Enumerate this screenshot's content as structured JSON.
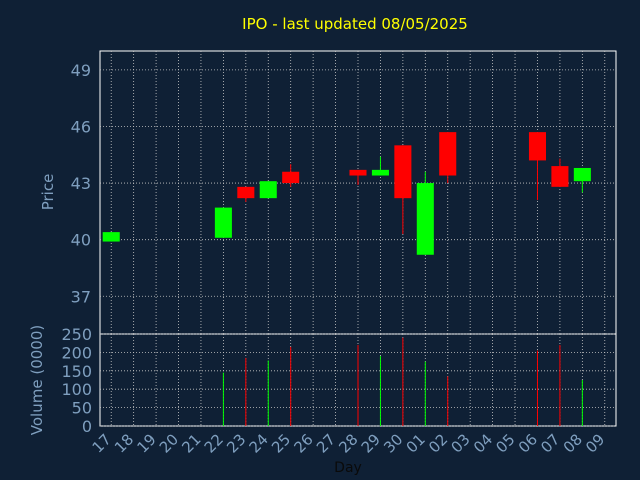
{
  "chart_data": {
    "type": "candlestick",
    "title": "IPO - last updated 08/05/2025",
    "xlabel": "Day",
    "price_panel": {
      "ylabel": "Price",
      "ylim": [
        35,
        50
      ],
      "yticks": [
        "37",
        "40",
        "43",
        "46",
        "49"
      ]
    },
    "volume_panel": {
      "ylabel": "Volume (0000)",
      "ylim": [
        0,
        250
      ],
      "yticks": [
        "0",
        "50",
        "100",
        "150",
        "200",
        "250"
      ]
    },
    "x_ticks": [
      "17",
      "18",
      "19",
      "20",
      "21",
      "22",
      "23",
      "24",
      "25",
      "26",
      "27",
      "28",
      "29",
      "30",
      "01",
      "02",
      "03",
      "04",
      "05",
      "06",
      "07",
      "08",
      "09"
    ],
    "grid": true,
    "colors": {
      "background": "#0f2035",
      "title": "#ffff00",
      "axis_text": "#7f9fbf",
      "frame": "#ffffff",
      "grid": "#c8c8c8",
      "up": "#00ff00",
      "down": "#ff0000"
    },
    "candles": [
      {
        "day": "17",
        "open": 39.9,
        "close": 40.4,
        "high": 40.4,
        "low": 39.9,
        "volume": 0
      },
      {
        "day": "22",
        "open": 40.1,
        "close": 41.7,
        "high": 41.7,
        "low": 40.1,
        "volume": 145
      },
      {
        "day": "23",
        "open": 42.8,
        "close": 42.2,
        "high": 42.8,
        "low": 42.0,
        "volume": 185
      },
      {
        "day": "24",
        "open": 42.2,
        "close": 43.1,
        "high": 43.1,
        "low": 42.2,
        "volume": 178
      },
      {
        "day": "25",
        "open": 43.6,
        "close": 43.0,
        "high": 44.0,
        "low": 42.8,
        "volume": 215
      },
      {
        "day": "28",
        "open": 43.7,
        "close": 43.4,
        "high": 43.7,
        "low": 42.9,
        "volume": 220
      },
      {
        "day": "29",
        "open": 43.4,
        "close": 43.7,
        "high": 44.4,
        "low": 43.4,
        "volume": 190
      },
      {
        "day": "30",
        "open": 45.0,
        "close": 42.2,
        "high": 45.0,
        "low": 40.3,
        "volume": 240
      },
      {
        "day": "01",
        "open": 39.2,
        "close": 43.0,
        "high": 43.6,
        "low": 39.2,
        "volume": 175
      },
      {
        "day": "02",
        "open": 45.7,
        "close": 43.4,
        "high": 45.7,
        "low": 43.0,
        "volume": 135
      },
      {
        "day": "06",
        "open": 45.7,
        "close": 44.2,
        "high": 45.7,
        "low": 42.1,
        "volume": 205
      },
      {
        "day": "07",
        "open": 43.9,
        "close": 42.8,
        "high": 44.3,
        "low": 42.8,
        "volume": 220
      },
      {
        "day": "08",
        "open": 43.1,
        "close": 43.8,
        "high": 43.8,
        "low": 42.5,
        "volume": 125
      }
    ]
  }
}
